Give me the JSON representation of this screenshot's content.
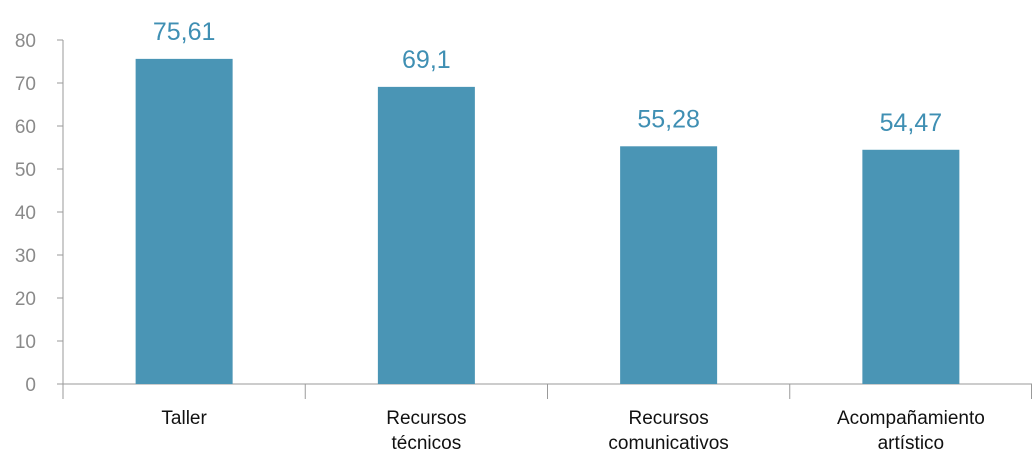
{
  "chart_data": {
    "type": "bar",
    "categories": [
      [
        "Taller"
      ],
      [
        "Recursos",
        "técnicos"
      ],
      [
        "Recursos",
        "comunicativos"
      ],
      [
        "Acompañamiento",
        "artístico"
      ]
    ],
    "values": [
      75.61,
      69.1,
      55.28,
      54.47
    ],
    "data_labels": [
      "75,61",
      "69,1",
      "55,28",
      "54,47"
    ],
    "y_ticks": [
      0,
      10,
      20,
      30,
      40,
      50,
      60,
      70,
      80
    ],
    "ylim": [
      0,
      80
    ],
    "grid": false,
    "legend": "none",
    "colors": {
      "bar": "#4a95b5",
      "data_label": "#3f8fb3",
      "axis": "#9a9a9a",
      "tick_label": "#8a8a8a",
      "category_label": "#111111"
    }
  }
}
